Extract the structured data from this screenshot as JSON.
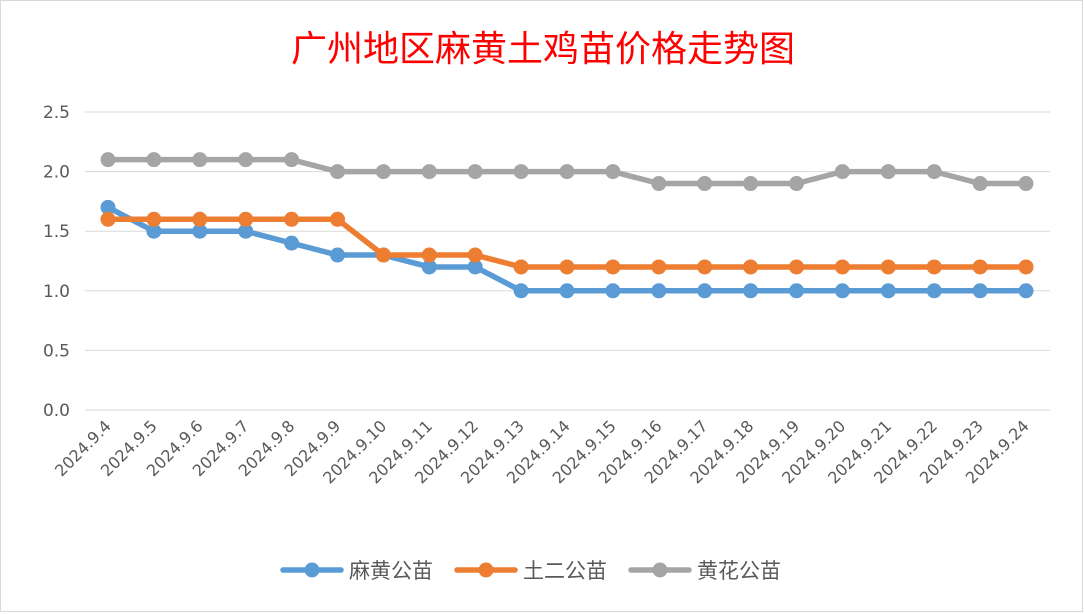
{
  "chart_data": {
    "type": "line",
    "title": "广州地区麻黄土鸡苗价格走势图",
    "xlabel": "",
    "ylabel": "",
    "categories": [
      "2024.9.4",
      "2024.9.5",
      "2024.9.6",
      "2024.9.7",
      "2024.9.8",
      "2024.9.9",
      "2024.9.10",
      "2024.9.11",
      "2024.9.12",
      "2024.9.13",
      "2024.9.14",
      "2024.9.15",
      "2024.9.16",
      "2024.9.17",
      "2024.9.18",
      "2024.9.19",
      "2024.9.20",
      "2024.9.21",
      "2024.9.22",
      "2024.9.23",
      "2024.9.24"
    ],
    "ylim": [
      0,
      2.5
    ],
    "yticks": [
      "0.0",
      "0.5",
      "1.0",
      "1.5",
      "2.0",
      "2.5"
    ],
    "grid": true,
    "legend_position": "bottom",
    "series": [
      {
        "name": "麻黄公苗",
        "color": "#5b9bd5",
        "values": [
          1.7,
          1.5,
          1.5,
          1.5,
          1.4,
          1.3,
          1.3,
          1.2,
          1.2,
          1.0,
          1.0,
          1.0,
          1.0,
          1.0,
          1.0,
          1.0,
          1.0,
          1.0,
          1.0,
          1.0,
          1.0
        ]
      },
      {
        "name": "土二公苗",
        "color": "#ed7d31",
        "values": [
          1.6,
          1.6,
          1.6,
          1.6,
          1.6,
          1.6,
          1.3,
          1.3,
          1.3,
          1.2,
          1.2,
          1.2,
          1.2,
          1.2,
          1.2,
          1.2,
          1.2,
          1.2,
          1.2,
          1.2,
          1.2
        ]
      },
      {
        "name": "黄花公苗",
        "color": "#a5a5a5",
        "values": [
          2.1,
          2.1,
          2.1,
          2.1,
          2.1,
          2.0,
          2.0,
          2.0,
          2.0,
          2.0,
          2.0,
          2.0,
          1.9,
          1.9,
          1.9,
          1.9,
          2.0,
          2.0,
          2.0,
          1.9,
          1.9
        ]
      }
    ]
  }
}
